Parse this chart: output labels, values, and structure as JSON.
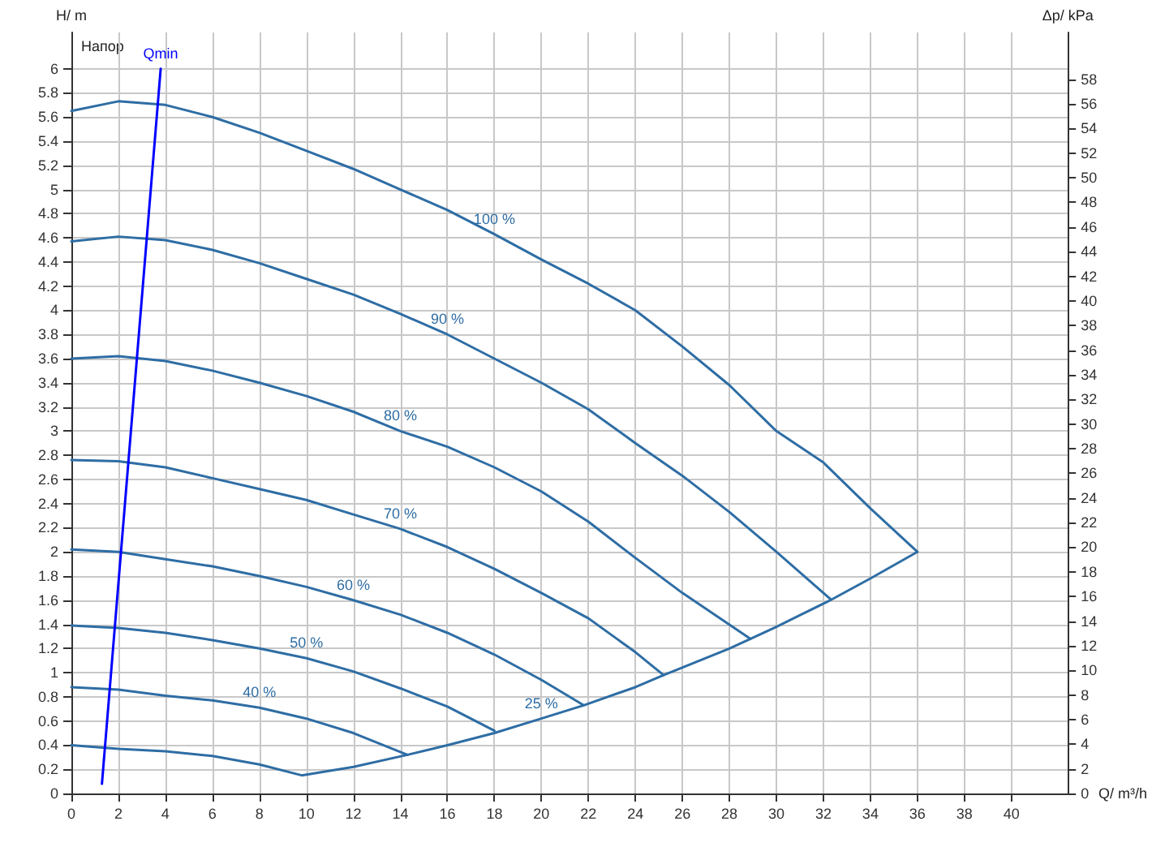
{
  "chart_data": {
    "type": "line",
    "xlabel": "Q/ m³/h",
    "ylabel": "H/ m",
    "y2label": "Δp/ kPa",
    "annotations": [
      "Напор"
    ],
    "xlim": [
      0,
      42.4
    ],
    "ylim": [
      0,
      6.3
    ],
    "y2lim": [
      0,
      61.8
    ],
    "xticks": [
      0,
      2,
      4,
      6,
      8,
      10,
      12,
      14,
      16,
      18,
      20,
      22,
      24,
      26,
      28,
      30,
      32,
      34,
      36,
      38,
      40
    ],
    "yticks": [
      0,
      0.2,
      0.4,
      0.6,
      0.8,
      1,
      1.2,
      1.4,
      1.6,
      1.8,
      2,
      2.2,
      2.4,
      2.6,
      2.8,
      3,
      3.2,
      3.4,
      3.6,
      3.8,
      4,
      4.2,
      4.4,
      4.6,
      4.8,
      5,
      5.2,
      5.4,
      5.6,
      5.8,
      6
    ],
    "y2ticks": [
      0,
      2,
      4,
      6,
      8,
      10,
      12,
      14,
      16,
      18,
      20,
      22,
      24,
      26,
      28,
      30,
      32,
      34,
      36,
      38,
      40,
      42,
      44,
      46,
      48,
      50,
      52,
      54,
      56,
      58
    ],
    "grid": true,
    "marker": "none",
    "line_style": "solid",
    "series": [
      {
        "name": "100 %",
        "color": "#2e6da4",
        "x": [
          0,
          2,
          4,
          6,
          8,
          10,
          12,
          14,
          16,
          18,
          20,
          22,
          24,
          26,
          28,
          30,
          32,
          34,
          36
        ],
        "values": [
          5.65,
          5.73,
          5.7,
          5.6,
          5.47,
          5.32,
          5.17,
          5.0,
          4.83,
          4.63,
          4.42,
          4.22,
          4.0,
          3.7,
          3.38,
          3.0,
          2.74,
          2.36,
          2.0
        ]
      },
      {
        "name": "90 %",
        "color": "#2e6da4",
        "x": [
          0,
          2,
          4,
          6,
          8,
          10,
          12,
          14,
          16,
          18,
          20,
          22,
          24,
          26,
          28,
          30,
          32.3
        ],
        "values": [
          4.57,
          4.61,
          4.58,
          4.5,
          4.39,
          4.26,
          4.13,
          3.97,
          3.8,
          3.6,
          3.4,
          3.18,
          2.9,
          2.63,
          2.33,
          2.0,
          1.61
        ]
      },
      {
        "name": "80 %",
        "color": "#2e6da4",
        "x": [
          0,
          2,
          4,
          6,
          8,
          10,
          12,
          14,
          16,
          18,
          20,
          22,
          24,
          26,
          28.9
        ],
        "values": [
          3.6,
          3.62,
          3.58,
          3.5,
          3.4,
          3.29,
          3.16,
          3.0,
          2.87,
          2.7,
          2.5,
          2.25,
          1.95,
          1.66,
          1.28
        ]
      },
      {
        "name": "70 %",
        "color": "#2e6da4",
        "x": [
          0,
          2,
          4,
          6,
          8,
          10,
          12,
          14,
          16,
          18,
          20,
          22,
          24,
          25.2
        ],
        "values": [
          2.76,
          2.75,
          2.7,
          2.61,
          2.52,
          2.43,
          2.31,
          2.19,
          2.04,
          1.86,
          1.66,
          1.45,
          1.17,
          0.98
        ]
      },
      {
        "name": "60 %",
        "color": "#2e6da4",
        "x": [
          0,
          2,
          4,
          6,
          8,
          10,
          12,
          14,
          16,
          18,
          20,
          21.8
        ],
        "values": [
          2.02,
          2.0,
          1.94,
          1.88,
          1.8,
          1.71,
          1.6,
          1.48,
          1.33,
          1.15,
          0.94,
          0.73
        ]
      },
      {
        "name": "50 %",
        "color": "#2e6da4",
        "x": [
          0,
          2,
          4,
          6,
          8,
          10,
          12,
          14,
          16,
          18
        ],
        "values": [
          1.39,
          1.37,
          1.33,
          1.27,
          1.2,
          1.12,
          1.01,
          0.87,
          0.72,
          0.52
        ]
      },
      {
        "name": "40 %",
        "color": "#2e6da4",
        "x": [
          0,
          2,
          4,
          6,
          8,
          10,
          12,
          14.3
        ],
        "values": [
          0.88,
          0.86,
          0.81,
          0.77,
          0.71,
          0.62,
          0.5,
          0.32
        ]
      },
      {
        "name": "25 %",
        "color": "#2e6da4",
        "x": [
          0,
          2,
          4,
          6,
          8,
          9.8,
          12,
          14.3,
          16,
          18,
          20,
          21.8,
          24,
          25.2,
          28,
          28.9,
          30,
          32.3,
          34,
          36
        ],
        "values": [
          0.4,
          0.37,
          0.35,
          0.31,
          0.24,
          0.15,
          0.22,
          0.32,
          0.4,
          0.5,
          0.62,
          0.73,
          0.88,
          0.98,
          1.2,
          1.28,
          1.38,
          1.6,
          1.78,
          2.0
        ]
      },
      {
        "name": "Qmin",
        "color": "#0000ff",
        "x": [
          1.3,
          3.8
        ],
        "values": [
          0.08,
          6.0
        ]
      }
    ]
  }
}
